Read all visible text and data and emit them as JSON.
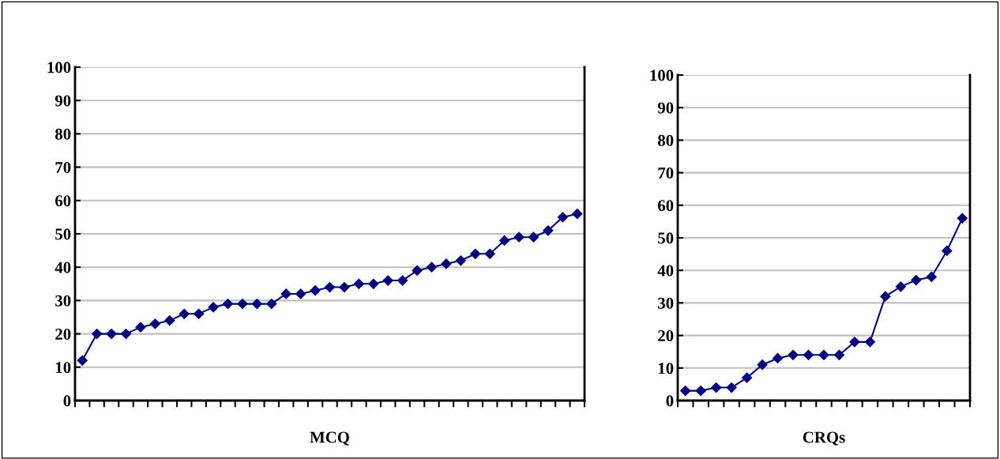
{
  "chart_data": [
    {
      "type": "line",
      "xlabel": "MCQ",
      "categories": [
        null,
        null,
        null,
        null,
        null,
        null,
        null,
        null,
        null,
        null,
        null,
        null,
        null,
        null,
        null,
        null,
        null,
        null,
        null,
        null,
        null,
        null,
        null,
        null,
        null,
        null,
        null,
        null,
        null,
        null,
        null,
        null,
        null,
        null,
        null
      ],
      "series": [
        {
          "color": "#000080",
          "values": [
            12,
            20,
            20,
            20,
            22,
            23,
            24,
            26,
            26,
            28,
            29,
            29,
            29,
            29,
            32,
            32,
            33,
            34,
            34,
            35,
            35,
            36,
            36,
            39,
            40,
            41,
            42,
            44,
            44,
            48,
            49,
            49,
            51,
            55,
            56
          ]
        }
      ],
      "ylim": [
        0,
        100
      ],
      "yticks": [
        0,
        10,
        20,
        30,
        40,
        50,
        60,
        70,
        80,
        90,
        100
      ],
      "grid": "y",
      "marker": "diamond",
      "line_style": "solid",
      "tick_labels": "y"
    },
    {
      "type": "line",
      "xlabel": "CRQs",
      "categories": [
        null,
        null,
        null,
        null,
        null,
        null,
        null,
        null,
        null,
        null,
        null,
        null,
        null,
        null,
        null,
        null,
        null,
        null,
        null
      ],
      "series": [
        {
          "color": "#000080",
          "values": [
            3,
            3,
            4,
            4,
            7,
            11,
            13,
            14,
            14,
            14,
            14,
            18,
            18,
            32,
            35,
            37,
            38,
            46,
            56
          ]
        }
      ],
      "ylim": [
        0,
        100
      ],
      "yticks": [
        0,
        10,
        20,
        30,
        40,
        50,
        60,
        70,
        80,
        90,
        100
      ],
      "grid": "y",
      "marker": "diamond",
      "line_style": "solid",
      "tick_labels": "y"
    }
  ]
}
